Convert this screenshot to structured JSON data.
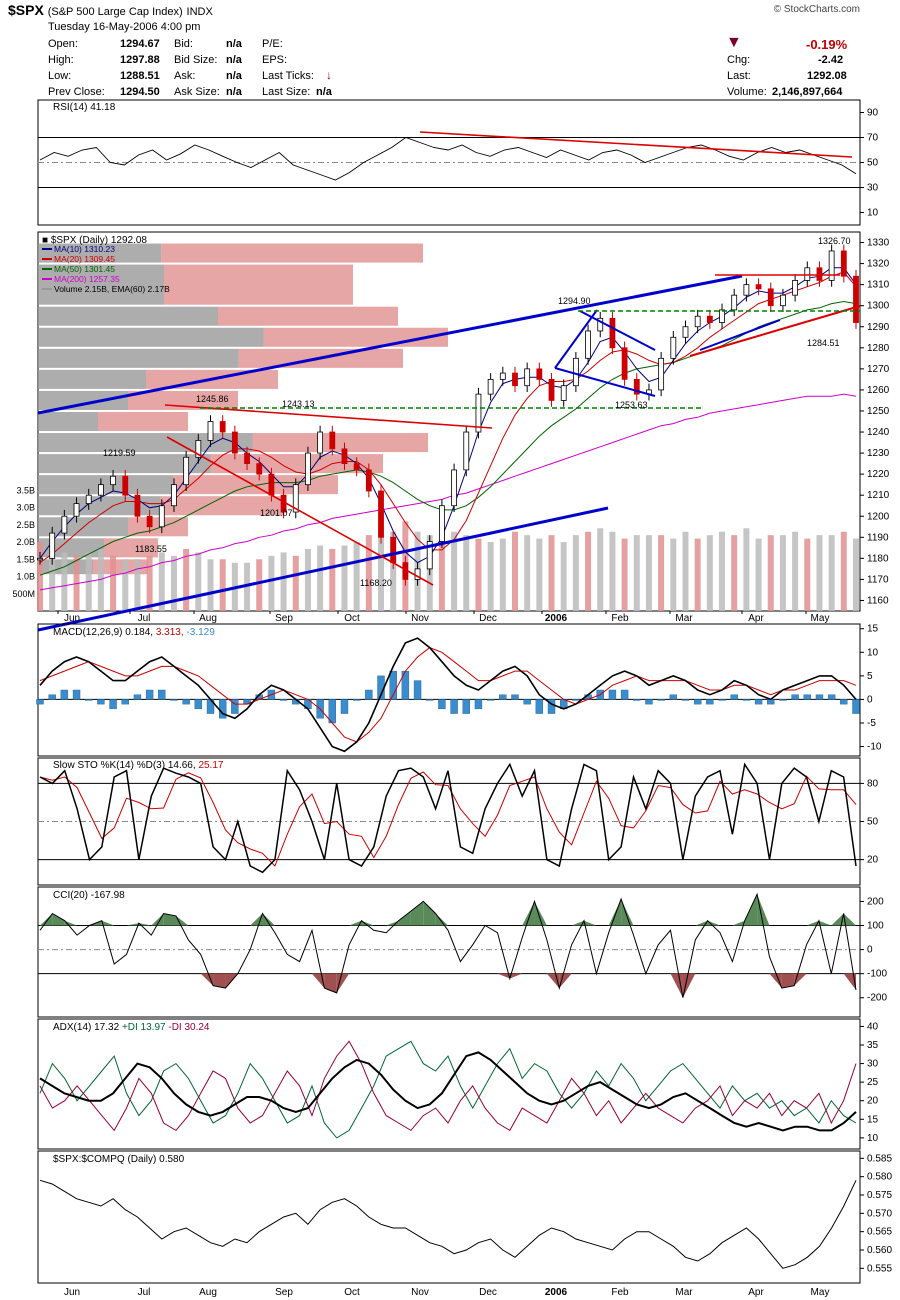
{
  "header": {
    "symbol": "$SPX",
    "name": "(S&P 500 Large Cap Index)",
    "exchange": "INDX",
    "copyright": "© StockCharts.com",
    "date": "Tuesday  16-May-2006  4:00 pm",
    "open_label": "Open:",
    "open": "1294.67",
    "high_label": "High:",
    "high": "1297.88",
    "low_label": "Low:",
    "low": "1288.51",
    "prev_label": "Prev Close:",
    "prev": "1294.50",
    "bid_label": "Bid:",
    "bid": "n/a",
    "bidsize_label": "Bid Size:",
    "bidsize": "n/a",
    "ask_label": "Ask:",
    "ask": "n/a",
    "asksize_label": "Ask Size:",
    "asksize": "n/a",
    "pe_label": "P/E:",
    "eps_label": "EPS:",
    "lastticks_label": "Last Ticks:",
    "lastsize_label": "Last Size:",
    "lastsize": "n/a",
    "pct": "-0.19%",
    "chg_label": "Chg:",
    "chg": "-2.42",
    "last_label": "Last:",
    "last": "1292.08",
    "volume_label": "Volume:",
    "volume": "2,146,897,664"
  },
  "colors": {
    "price_up": "#000000",
    "price_down": "#cc0000",
    "ma10": "#000080",
    "ma20": "#cc0000",
    "ma50": "#006400",
    "ma200": "#cc00cc",
    "trend_blue": "#0000cc",
    "trend_red": "#dd0000",
    "support_green": "#008000",
    "macd_hist": "#3a8ccc",
    "cci_fill_pos": "#5a8a5a",
    "cci_fill_neg": "#a05050",
    "volume_bar": "#bbbbbb",
    "volume_by_price_up": "#999999",
    "volume_by_price_down": "#e09090"
  },
  "chart_data": [
    {
      "type": "line",
      "panel": "rsi",
      "legend": "RSI(14) 41.18",
      "yticks": [
        "90",
        "70",
        "50",
        "30",
        "10"
      ],
      "ylim": [
        0,
        100
      ],
      "values": [
        52,
        58,
        55,
        60,
        62,
        50,
        48,
        56,
        60,
        52,
        57,
        64,
        60,
        55,
        50,
        46,
        52,
        58,
        48,
        44,
        40,
        36,
        42,
        50,
        56,
        62,
        70,
        66,
        62,
        60,
        64,
        58,
        55,
        60,
        62,
        58,
        54,
        60,
        56,
        52,
        58,
        60,
        56,
        50,
        54,
        58,
        62,
        64,
        60,
        55,
        52,
        58,
        62,
        58,
        60,
        56,
        52,
        48,
        41
      ]
    },
    {
      "type": "line",
      "panel": "price",
      "legend": "$SPX (Daily) 1292.08",
      "ma_legend": [
        "MA(10) 1310.23",
        "MA(20) 1309.45",
        "MA(50) 1301.45",
        "MA(200) 1257.35",
        "Volume 2.15B, EMA(60) 2.17B"
      ],
      "yticks": [
        "1330",
        "1320",
        "1310",
        "1300",
        "1290",
        "1280",
        "1270",
        "1260",
        "1250",
        "1240",
        "1230",
        "1220",
        "1210",
        "1200",
        "1190",
        "1180",
        "1170",
        "1160"
      ],
      "ylim": [
        1155,
        1335
      ],
      "vol_ticks": [
        "3.5B",
        "3.0B",
        "2.5B",
        "2.0B",
        "1.5B",
        "1.0B",
        "500M"
      ],
      "xticks": [
        "Jun",
        "Jul",
        "Aug",
        "Sep",
        "Oct",
        "Nov",
        "Dec",
        "2006",
        "Feb",
        "Mar",
        "Apr",
        "May"
      ],
      "annotations": [
        "1326.70",
        "1294.90",
        "1284.51",
        "1253.63",
        "1245.86",
        "1243.13",
        "1219.59",
        "1201.07",
        "1183.55",
        "1168.20"
      ],
      "close": [
        1180,
        1192,
        1200,
        1206,
        1210,
        1215,
        1219,
        1210,
        1200,
        1195,
        1205,
        1215,
        1228,
        1236,
        1245,
        1240,
        1230,
        1225,
        1220,
        1210,
        1202,
        1215,
        1230,
        1240,
        1232,
        1225,
        1222,
        1212,
        1190,
        1178,
        1170,
        1175,
        1188,
        1205,
        1222,
        1240,
        1258,
        1265,
        1268,
        1262,
        1270,
        1265,
        1255,
        1262,
        1275,
        1288,
        1294,
        1280,
        1265,
        1258,
        1260,
        1275,
        1285,
        1290,
        1295,
        1292,
        1298,
        1305,
        1310,
        1308,
        1300,
        1305,
        1312,
        1318,
        1312,
        1326,
        1314,
        1292
      ],
      "ma10": [
        1180,
        1188,
        1195,
        1201,
        1206,
        1209,
        1212,
        1211,
        1208,
        1204,
        1205,
        1210,
        1218,
        1226,
        1234,
        1237,
        1235,
        1230,
        1226,
        1220,
        1214,
        1214,
        1220,
        1228,
        1231,
        1229,
        1225,
        1218,
        1206,
        1193,
        1183,
        1178,
        1181,
        1190,
        1205,
        1222,
        1240,
        1254,
        1263,
        1265,
        1266,
        1266,
        1262,
        1261,
        1265,
        1273,
        1283,
        1285,
        1278,
        1270,
        1264,
        1266,
        1274,
        1282,
        1288,
        1292,
        1295,
        1299,
        1304,
        1307,
        1306,
        1306,
        1309,
        1313,
        1314,
        1318,
        1318,
        1310
      ],
      "ma20": [
        1178,
        1182,
        1187,
        1192,
        1197,
        1201,
        1205,
        1207,
        1207,
        1206,
        1206,
        1208,
        1213,
        1218,
        1224,
        1229,
        1232,
        1232,
        1231,
        1228,
        1224,
        1221,
        1220,
        1222,
        1225,
        1226,
        1226,
        1222,
        1215,
        1206,
        1197,
        1189,
        1184,
        1184,
        1189,
        1198,
        1211,
        1224,
        1237,
        1248,
        1256,
        1262,
        1264,
        1264,
        1265,
        1269,
        1274,
        1278,
        1279,
        1277,
        1274,
        1272,
        1273,
        1276,
        1280,
        1285,
        1289,
        1293,
        1297,
        1301,
        1303,
        1305,
        1307,
        1309,
        1311,
        1314,
        1316,
        1309
      ],
      "ma50": [
        1172,
        1174,
        1176,
        1179,
        1182,
        1185,
        1188,
        1190,
        1192,
        1193,
        1195,
        1197,
        1200,
        1203,
        1206,
        1209,
        1212,
        1214,
        1215,
        1216,
        1216,
        1216,
        1217,
        1219,
        1220,
        1221,
        1222,
        1221,
        1219,
        1216,
        1212,
        1208,
        1205,
        1203,
        1203,
        1205,
        1209,
        1214,
        1220,
        1226,
        1232,
        1238,
        1243,
        1247,
        1251,
        1256,
        1261,
        1265,
        1268,
        1270,
        1271,
        1272,
        1273,
        1275,
        1277,
        1279,
        1281,
        1284,
        1287,
        1290,
        1292,
        1294,
        1296,
        1298,
        1299,
        1301,
        1302,
        1301
      ],
      "ma200": [
        1165,
        1166,
        1167,
        1168,
        1169,
        1170,
        1172,
        1173,
        1175,
        1176,
        1178,
        1179,
        1181,
        1182,
        1184,
        1185,
        1187,
        1188,
        1190,
        1191,
        1193,
        1194,
        1196,
        1197,
        1199,
        1200,
        1201,
        1202,
        1203,
        1204,
        1205,
        1206,
        1207,
        1208,
        1210,
        1211,
        1213,
        1215,
        1217,
        1219,
        1221,
        1223,
        1225,
        1227,
        1229,
        1231,
        1233,
        1235,
        1237,
        1239,
        1241,
        1243,
        1244,
        1246,
        1247,
        1249,
        1250,
        1251,
        1252,
        1253,
        1254,
        1255,
        1256,
        1257,
        1257,
        1257,
        1258,
        1257
      ],
      "volume_billion": [
        2.0,
        1.8,
        1.7,
        1.6,
        1.7,
        1.8,
        1.6,
        1.5,
        1.5,
        1.6,
        1.7,
        1.6,
        1.8,
        1.7,
        1.5,
        1.5,
        1.4,
        1.4,
        1.5,
        1.6,
        1.7,
        1.6,
        1.8,
        1.9,
        1.8,
        1.9,
        2.0,
        2.2,
        2.4,
        2.3,
        2.6,
        2.3,
        2.2,
        2.4,
        2.3,
        2.2,
        2.1,
        2.0,
        2.1,
        2.3,
        2.2,
        2.1,
        2.2,
        2.0,
        2.2,
        2.3,
        2.4,
        2.3,
        2.1,
        2.2,
        2.2,
        2.2,
        2.1,
        2.3,
        2.1,
        2.2,
        2.3,
        2.2,
        2.4,
        2.1,
        2.2,
        2.2,
        2.3,
        2.1,
        2.2,
        2.2,
        2.3,
        2.1
      ]
    },
    {
      "type": "line",
      "panel": "macd",
      "legend_prefix": "MACD(12,26,9) 0.184, ",
      "legend_signal": "3.313",
      "legend_hist": "-3.129",
      "yticks": [
        "15",
        "10",
        "5",
        "0",
        "-5",
        "-10"
      ],
      "ylim": [
        -12,
        16
      ],
      "macd": [
        3,
        6,
        8,
        9,
        8,
        6,
        4,
        4,
        6,
        8,
        9,
        7,
        5,
        3,
        0,
        -3,
        -4,
        -2,
        1,
        3,
        2,
        0,
        -2,
        -6,
        -10,
        -11,
        -9,
        -5,
        1,
        7,
        12,
        13,
        11,
        8,
        5,
        3,
        2,
        4,
        6,
        7,
        5,
        1,
        -1,
        -2,
        -1,
        1,
        3,
        5,
        6,
        5,
        3,
        4,
        5,
        4,
        2,
        1,
        2,
        4,
        3,
        1,
        0,
        2,
        3,
        4,
        5,
        5,
        3,
        0
      ],
      "signal": [
        4,
        5,
        6,
        7,
        8,
        7,
        6,
        5,
        5,
        6,
        7,
        7,
        6,
        5,
        3,
        1,
        -1,
        -1,
        0,
        1,
        2,
        1,
        0,
        -2,
        -5,
        -8,
        -9,
        -7,
        -4,
        1,
        6,
        9,
        11,
        10,
        8,
        6,
        4,
        4,
        5,
        6,
        6,
        4,
        2,
        0,
        -1,
        0,
        1,
        3,
        4,
        5,
        4,
        4,
        4,
        4,
        3,
        2,
        2,
        3,
        3,
        2,
        1,
        2,
        2,
        3,
        4,
        4,
        4,
        3
      ]
    },
    {
      "type": "line",
      "panel": "sto",
      "legend_prefix": "Slow STO %K(14) %D(3) 14.66, ",
      "legend_d": "25.17",
      "yticks": [
        "80",
        "50",
        "20"
      ],
      "ylim": [
        0,
        100
      ],
      "k": [
        85,
        80,
        90,
        60,
        20,
        30,
        85,
        90,
        20,
        70,
        92,
        88,
        85,
        80,
        30,
        20,
        50,
        15,
        10,
        20,
        90,
        75,
        50,
        20,
        80,
        20,
        15,
        30,
        70,
        90,
        92,
        85,
        60,
        90,
        30,
        25,
        60,
        80,
        95,
        70,
        90,
        20,
        15,
        60,
        95,
        90,
        20,
        30,
        85,
        60,
        90,
        80,
        20,
        70,
        85,
        90,
        40,
        95,
        80,
        20,
        80,
        92,
        85,
        50,
        90,
        85,
        15
      ]
    },
    {
      "type": "line",
      "panel": "cci",
      "legend": "CCI(20) -167.98",
      "yticks": [
        "200",
        "100",
        "0",
        "-100",
        "-200"
      ],
      "ylim": [
        -280,
        260
      ],
      "values": [
        80,
        150,
        120,
        60,
        100,
        120,
        -60,
        -20,
        110,
        60,
        150,
        140,
        40,
        -20,
        -150,
        -160,
        -100,
        0,
        150,
        70,
        -20,
        -50,
        80,
        -160,
        -180,
        20,
        120,
        80,
        70,
        120,
        160,
        200,
        150,
        80,
        -50,
        20,
        100,
        70,
        -120,
        50,
        200,
        40,
        -160,
        20,
        120,
        -100,
        70,
        210,
        60,
        -100,
        20,
        80,
        -200,
        40,
        120,
        70,
        -50,
        120,
        230,
        -30,
        -160,
        -150,
        20,
        120,
        -100,
        150,
        -168
      ]
    },
    {
      "type": "line",
      "panel": "adx",
      "legend_prefix": "ADX(14) 17.32 ",
      "legend_pdi": "+DI 13.97",
      "legend_mdi": "-DI 30.24",
      "yticks": [
        "40",
        "35",
        "30",
        "25",
        "20",
        "15",
        "10"
      ],
      "ylim": [
        7,
        42
      ],
      "adx": [
        26,
        24,
        22,
        21,
        20,
        20,
        22,
        26,
        30,
        29,
        26,
        22,
        19,
        17,
        16,
        17,
        19,
        21,
        21,
        20,
        18,
        17,
        18,
        22,
        26,
        29,
        31,
        30,
        27,
        23,
        20,
        18,
        19,
        22,
        27,
        32,
        33,
        31,
        28,
        25,
        22,
        20,
        19,
        20,
        22,
        24,
        25,
        23,
        21,
        19,
        18,
        19,
        21,
        22,
        20,
        18,
        16,
        14,
        13,
        14,
        13,
        12,
        13,
        13,
        12,
        12,
        14,
        17
      ],
      "pdi": [
        22,
        30,
        26,
        20,
        24,
        28,
        32,
        22,
        16,
        20,
        28,
        30,
        26,
        20,
        14,
        16,
        22,
        30,
        26,
        20,
        14,
        16,
        24,
        14,
        10,
        12,
        18,
        24,
        32,
        34,
        36,
        30,
        28,
        32,
        24,
        18,
        24,
        30,
        34,
        26,
        30,
        28,
        22,
        18,
        22,
        28,
        24,
        30,
        26,
        20,
        24,
        28,
        30,
        26,
        22,
        18,
        24,
        20,
        22,
        18,
        20,
        16,
        18,
        14,
        20,
        16,
        14
      ],
      "mdi": [
        24,
        18,
        20,
        24,
        20,
        16,
        12,
        18,
        26,
        22,
        14,
        12,
        16,
        22,
        28,
        26,
        18,
        14,
        16,
        22,
        28,
        24,
        16,
        26,
        32,
        36,
        30,
        22,
        16,
        14,
        12,
        16,
        18,
        14,
        20,
        24,
        18,
        14,
        12,
        18,
        16,
        14,
        20,
        26,
        22,
        16,
        20,
        14,
        18,
        22,
        18,
        16,
        14,
        18,
        20,
        24,
        16,
        20,
        18,
        22,
        16,
        20,
        18,
        22,
        14,
        20,
        30
      ]
    },
    {
      "type": "line",
      "panel": "ratio",
      "legend": "$SPX:$COMPQ (Daily) 0.580",
      "yticks": [
        "0.585",
        "0.580",
        "0.575",
        "0.570",
        "0.565",
        "0.560",
        "0.555"
      ],
      "ylim": [
        0.551,
        0.587
      ],
      "values": [
        0.579,
        0.578,
        0.576,
        0.574,
        0.573,
        0.572,
        0.574,
        0.571,
        0.569,
        0.566,
        0.563,
        0.565,
        0.566,
        0.564,
        0.562,
        0.561,
        0.563,
        0.562,
        0.565,
        0.567,
        0.569,
        0.57,
        0.567,
        0.571,
        0.573,
        0.574,
        0.572,
        0.569,
        0.567,
        0.566,
        0.566,
        0.564,
        0.562,
        0.561,
        0.559,
        0.56,
        0.562,
        0.563,
        0.56,
        0.558,
        0.561,
        0.564,
        0.566,
        0.565,
        0.563,
        0.562,
        0.561,
        0.56,
        0.563,
        0.565,
        0.565,
        0.563,
        0.561,
        0.558,
        0.557,
        0.559,
        0.562,
        0.564,
        0.566,
        0.563,
        0.559,
        0.555,
        0.556,
        0.558,
        0.561,
        0.566,
        0.572,
        0.579
      ]
    }
  ]
}
